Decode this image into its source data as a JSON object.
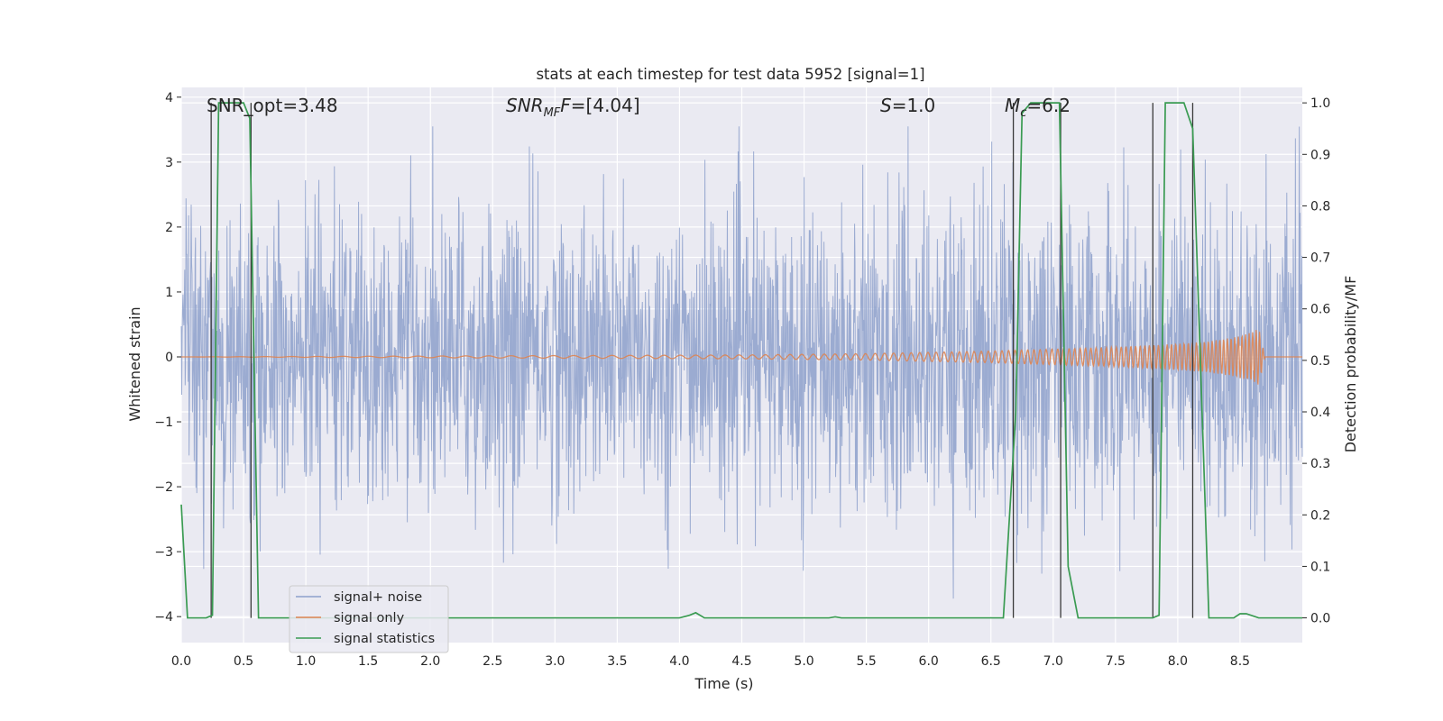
{
  "chart_data": {
    "type": "line",
    "title": "stats at each timestep for test data 5952 [signal=1]",
    "xlabel": "Time (s)",
    "ylabel": "Whitened strain",
    "y2label": "Detection probability/MF",
    "xlim": [
      0,
      9.0
    ],
    "ylim": [
      -4.4,
      4.15
    ],
    "y2lim": [
      -0.048,
      1.03
    ],
    "xticks": [
      "0.0",
      "0.5",
      "1.0",
      "1.5",
      "2.0",
      "2.5",
      "3.0",
      "3.5",
      "4.0",
      "4.5",
      "5.0",
      "5.5",
      "6.0",
      "6.5",
      "7.0",
      "7.5",
      "8.0",
      "8.5"
    ],
    "yticks": [
      "4",
      "3",
      "2",
      "1",
      "0",
      "−1",
      "−2",
      "−3",
      "−4"
    ],
    "y2ticks": [
      "1.0",
      "0.9",
      "0.8",
      "0.7",
      "0.6",
      "0.5",
      "0.4",
      "0.3",
      "0.2",
      "0.1",
      "0.0"
    ],
    "grid": true,
    "legend_position": "lower-left",
    "annotations": {
      "snr_opt": "SNR_opt=3.48",
      "snr_mf_main": "SNR",
      "snr_mf_sub": "MF",
      "snr_mf_value": "=[4.04]",
      "s_var": "S",
      "s_value": "=1.0",
      "mc_var": "M",
      "mc_sub": "c",
      "mc_value": "=6.2"
    },
    "series": [
      {
        "name": "signal+ noise",
        "color": "#8da0cb",
        "noise_envelope": {
          "x": [
            0.0,
            0.5,
            1.0,
            1.5,
            2.0,
            2.5,
            3.0,
            3.5,
            4.0,
            4.5,
            5.0,
            5.5,
            6.0,
            6.5,
            7.0,
            7.5,
            8.0,
            8.5,
            9.0
          ],
          "upper": [
            2.6,
            2.7,
            2.5,
            2.4,
            2.6,
            2.7,
            2.5,
            2.4,
            2.5,
            2.4,
            2.5,
            2.7,
            2.6,
            2.8,
            2.6,
            2.5,
            2.7,
            2.8,
            2.6
          ],
          "lower": [
            -2.4,
            -2.5,
            -2.3,
            -2.4,
            -2.2,
            -2.4,
            -2.5,
            -2.4,
            -2.5,
            -2.4,
            -2.4,
            -2.6,
            -2.6,
            -2.8,
            -2.6,
            -2.6,
            -2.5,
            -2.4,
            -2.3
          ]
        }
      },
      {
        "name": "signal only",
        "color": "#dd8452",
        "x": [
          0.0,
          4.5,
          5.5,
          6.0,
          6.5,
          7.0,
          7.5,
          8.0,
          8.25,
          8.45,
          8.6,
          8.65,
          8.7,
          9.0
        ],
        "amplitude": [
          0.0,
          0.03,
          0.05,
          0.07,
          0.09,
          0.12,
          0.15,
          0.2,
          0.24,
          0.3,
          0.38,
          0.45,
          0.0,
          0.0
        ]
      },
      {
        "name": "signal statistics",
        "color": "#3a9b52",
        "x": [
          0.0,
          0.05,
          0.2,
          0.25,
          0.3,
          0.5,
          0.55,
          0.62,
          4.0,
          4.08,
          4.13,
          4.2,
          5.2,
          5.25,
          5.3,
          6.6,
          6.7,
          6.75,
          6.82,
          7.05,
          7.12,
          7.2,
          7.8,
          7.85,
          7.9,
          8.05,
          8.12,
          8.25,
          8.45,
          8.5,
          8.55,
          8.65,
          9.0
        ],
        "values": [
          0.22,
          0.0,
          0.0,
          0.005,
          1.0,
          1.0,
          0.97,
          0.0,
          0.0,
          0.005,
          0.01,
          0.0,
          0.0,
          0.002,
          0.0,
          0.0,
          0.4,
          0.98,
          1.0,
          1.0,
          0.1,
          0.0,
          0.0,
          0.005,
          1.0,
          1.0,
          0.95,
          0.0,
          0.0,
          0.008,
          0.008,
          0.0,
          0.0
        ]
      }
    ],
    "vertical_markers": [
      0.24,
      0.56,
      6.68,
      7.06,
      7.8,
      8.12
    ]
  }
}
